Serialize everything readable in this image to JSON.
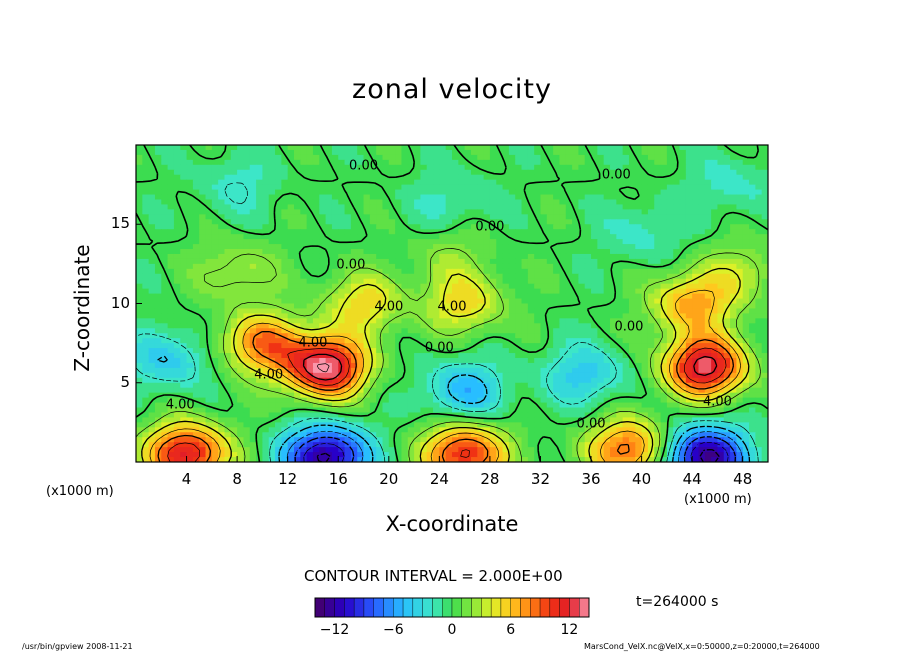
{
  "chart_data": {
    "type": "heatmap",
    "title": "zonal velocity",
    "xlabel": "X-coordinate",
    "ylabel": "Z-coordinate",
    "x_unit": "(x1000 m)",
    "z_unit": "(x1000 m)",
    "xlim": [
      0,
      50
    ],
    "ylim": [
      0,
      20
    ],
    "x_ticks": [
      4,
      8,
      12,
      16,
      20,
      24,
      28,
      32,
      36,
      40,
      44,
      48
    ],
    "y_ticks": [
      5,
      10,
      15
    ],
    "contour_interval_text": "CONTOUR INTERVAL = 2.000E+00",
    "contour_labels": [
      {
        "text": "0.00",
        "x": 18,
        "z": 18.7
      },
      {
        "text": "0.00",
        "x": 38,
        "z": 18.1
      },
      {
        "text": "0.00",
        "x": 28,
        "z": 14.8
      },
      {
        "text": "0.00",
        "x": 17,
        "z": 12.4
      },
      {
        "text": "4.00",
        "x": 20,
        "z": 9.8
      },
      {
        "text": "4.00",
        "x": 25,
        "z": 9.8
      },
      {
        "text": "0.00",
        "x": 39,
        "z": 8.5
      },
      {
        "text": "4.00",
        "x": 14,
        "z": 7.5
      },
      {
        "text": "0.00",
        "x": 24,
        "z": 7.2
      },
      {
        "text": "4.00",
        "x": 10.5,
        "z": 5.5
      },
      {
        "text": "4.00",
        "x": 3.5,
        "z": 3.6
      },
      {
        "text": "4.00",
        "x": 46,
        "z": 3.8
      },
      {
        "text": "0.00",
        "x": 36,
        "z": 2.4
      }
    ],
    "features": [
      {
        "x": 15,
        "z": 6,
        "value": 14
      },
      {
        "x": 45,
        "z": 6,
        "value": 13
      },
      {
        "x": 10,
        "z": 7.5,
        "value": 8
      },
      {
        "x": 44,
        "z": 10,
        "value": 7
      },
      {
        "x": 26,
        "z": 10,
        "value": 5
      },
      {
        "x": 18,
        "z": 10,
        "value": 5
      },
      {
        "x": 2.5,
        "z": 6.5,
        "value": -4
      },
      {
        "x": 26,
        "z": 4.5,
        "value": -5
      },
      {
        "x": 35.5,
        "z": 5.5,
        "value": -4
      },
      {
        "x": 15,
        "z": 0.3,
        "value": -13
      },
      {
        "x": 45,
        "z": 0.3,
        "value": -13
      },
      {
        "x": 4,
        "z": 0.5,
        "value": 12
      },
      {
        "x": 26,
        "z": 0.5,
        "value": 11
      },
      {
        "x": 39,
        "z": 0.8,
        "value": 9
      },
      {
        "x": 8,
        "z": 17.5,
        "value": -2
      },
      {
        "x": 25,
        "z": 16.5,
        "value": -2
      },
      {
        "x": 40,
        "z": 14.5,
        "value": -2
      },
      {
        "x": 47,
        "z": 17.5,
        "value": -2
      },
      {
        "x": 25,
        "z": 13,
        "value": 2
      },
      {
        "x": 8,
        "z": 12,
        "value": 3
      },
      {
        "x": 48,
        "z": 12,
        "value": 3
      }
    ],
    "colorbar": {
      "min": -14,
      "max": 14,
      "ticks": [
        -12,
        -6,
        0,
        6,
        12
      ],
      "tick_labels": [
        "−12",
        "−6",
        "0",
        "6",
        "12"
      ]
    },
    "time_label": "t=264000 s",
    "legend": "none",
    "grid": false
  },
  "footer": {
    "left": "/usr/bin/gpview   2008-11-21",
    "right": "MarsCond_VelX.nc@VelX,x=0:50000,z=0:20000,t=264000"
  }
}
